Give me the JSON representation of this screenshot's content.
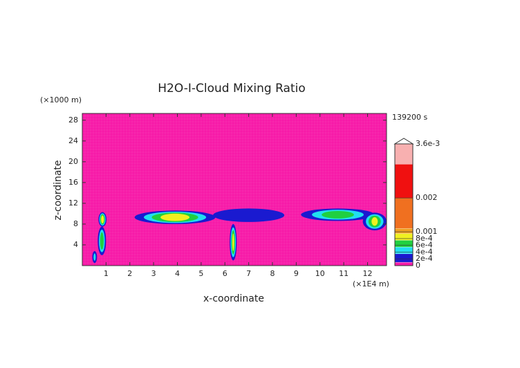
{
  "chart_data": {
    "type": "contour",
    "title": "H2O-I-Cloud Mixing Ratio",
    "time_label": "139200 s",
    "x_label": "x-coordinate",
    "y_label": "z-coordinate",
    "x_unit_label": "(×1E4 m)",
    "y_unit_label": "(×1000 m)",
    "xlim": [
      0,
      12.8
    ],
    "xticks": [
      1,
      2,
      3,
      4,
      5,
      6,
      7,
      8,
      9,
      10,
      11,
      12
    ],
    "ylim": [
      0,
      29.3
    ],
    "yticks": [
      4,
      8,
      12,
      16,
      20,
      24,
      28
    ],
    "background_color": "#f71aa8",
    "colorbar": {
      "lim": [
        0,
        0.0036
      ],
      "ticks": [
        0,
        {
          "value": 0.0002,
          "label": "2e-4"
        },
        {
          "value": 0.0004,
          "label": "4e-4"
        },
        {
          "value": 0.0006,
          "label": "6e-4"
        },
        {
          "value": 0.0008,
          "label": "8e-4"
        },
        0.001,
        0.002,
        {
          "value": 0.0036,
          "label": "3.6e-3"
        }
      ],
      "bounds": [
        0,
        0.0001,
        0.00035,
        0.00055,
        0.00075,
        0.00095,
        0.0011,
        0.002,
        0.003,
        0.0036
      ],
      "colors": [
        "#f71aa8",
        "#1a1ad0",
        "#20e0f0",
        "#20d040",
        "#f0f020",
        "#f0a020",
        "#f07020",
        "#f01010",
        "#f8b0b0"
      ]
    },
    "regions": [
      {
        "x": [
          0.42,
          0.62
        ],
        "z": [
          0.5,
          2.8
        ],
        "max": 0.0004
      },
      {
        "x": [
          0.65,
          1.0
        ],
        "z": [
          2.0,
          7.5
        ],
        "max": 0.0007
      },
      {
        "x": [
          0.68,
          1.02
        ],
        "z": [
          7.5,
          10.3
        ],
        "max": 0.0009
      },
      {
        "x": [
          2.2,
          5.6
        ],
        "z": [
          8.0,
          10.6
        ],
        "max": 0.0009
      },
      {
        "x": [
          5.5,
          8.5
        ],
        "z": [
          8.4,
          11.0
        ],
        "max": 0.0003
      },
      {
        "x": [
          6.2,
          6.5
        ],
        "z": [
          1.0,
          8.0
        ],
        "max": 0.0008
      },
      {
        "x": [
          9.2,
          12.3
        ],
        "z": [
          8.6,
          11.0
        ],
        "max": 0.0007
      },
      {
        "x": [
          11.8,
          12.8
        ],
        "z": [
          6.8,
          10.2
        ],
        "max": 0.0008
      }
    ]
  }
}
